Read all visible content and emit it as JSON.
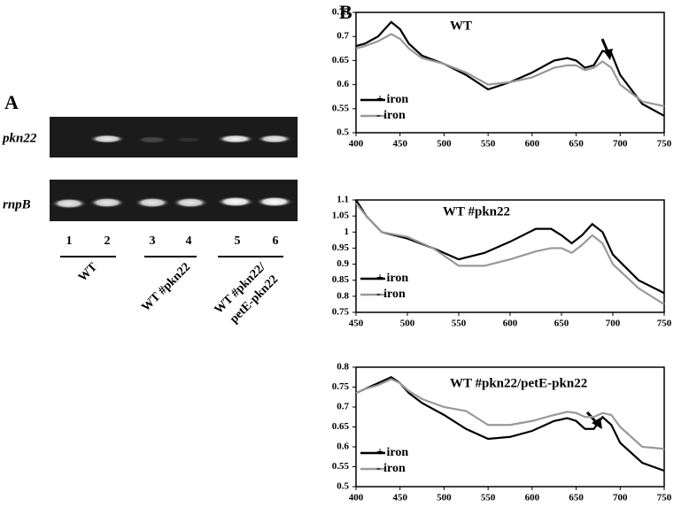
{
  "panel_a": {
    "label": "A",
    "rows": [
      "pkn22",
      "rnpB"
    ],
    "lanes": [
      "1",
      "2",
      "3",
      "4",
      "5",
      "6"
    ],
    "groups": [
      [
        "WT"
      ],
      [
        "WT #pkn22"
      ],
      [
        "WT #pkn22/",
        "petE-pkn22"
      ]
    ]
  },
  "panel_b": {
    "label": "B"
  },
  "chart_data": [
    {
      "type": "line",
      "title": "WT",
      "x": [
        400,
        410,
        425,
        440,
        450,
        460,
        475,
        500,
        525,
        550,
        575,
        600,
        625,
        640,
        650,
        660,
        670,
        680,
        690,
        700,
        725,
        750
      ],
      "xlim": [
        400,
        750
      ],
      "xticks": [
        400,
        450,
        500,
        550,
        600,
        650,
        700,
        750
      ],
      "ylim": [
        0.5,
        0.75
      ],
      "yticks": [
        0.5,
        0.55,
        0.6,
        0.65,
        0.7,
        0.75
      ],
      "series": [
        {
          "name": "+ iron",
          "color": "#000000",
          "values": [
            0.68,
            0.685,
            0.7,
            0.73,
            0.715,
            0.685,
            0.66,
            0.643,
            0.62,
            0.59,
            0.605,
            0.625,
            0.65,
            0.655,
            0.65,
            0.635,
            0.64,
            0.67,
            0.665,
            0.62,
            0.56,
            0.535
          ]
        },
        {
          "name": "- iron",
          "color": "#999999",
          "values": [
            0.675,
            0.68,
            0.69,
            0.705,
            0.695,
            0.675,
            0.655,
            0.643,
            0.625,
            0.6,
            0.605,
            0.615,
            0.635,
            0.64,
            0.64,
            0.63,
            0.635,
            0.648,
            0.635,
            0.6,
            0.565,
            0.555
          ]
        }
      ]
    },
    {
      "type": "line",
      "title": "WT #pkn22",
      "x": [
        450,
        460,
        475,
        500,
        525,
        550,
        575,
        600,
        625,
        640,
        650,
        660,
        670,
        680,
        690,
        700,
        725,
        750
      ],
      "xlim": [
        450,
        750
      ],
      "xticks": [
        450,
        500,
        550,
        600,
        650,
        700,
        750
      ],
      "ylim": [
        0.75,
        1.1
      ],
      "yticks": [
        0.75,
        0.8,
        0.85,
        0.9,
        0.95,
        1,
        1.05,
        1.1
      ],
      "series": [
        {
          "name": "+ iron",
          "color": "#000000",
          "values": [
            1.1,
            1.05,
            1.0,
            0.98,
            0.95,
            0.915,
            0.935,
            0.97,
            1.01,
            1.01,
            0.99,
            0.965,
            0.99,
            1.025,
            1.0,
            0.93,
            0.85,
            0.81
          ]
        },
        {
          "name": "- iron",
          "color": "#999999",
          "values": [
            1.09,
            1.05,
            1.0,
            0.985,
            0.95,
            0.895,
            0.895,
            0.915,
            0.94,
            0.95,
            0.95,
            0.935,
            0.96,
            0.99,
            0.965,
            0.9,
            0.825,
            0.775
          ]
        }
      ]
    },
    {
      "type": "line",
      "title": "WT #pkn22/petE-pkn22",
      "x": [
        400,
        410,
        425,
        440,
        450,
        460,
        475,
        500,
        525,
        550,
        575,
        600,
        625,
        640,
        650,
        660,
        670,
        680,
        690,
        700,
        725,
        750
      ],
      "xlim": [
        400,
        750
      ],
      "xticks": [
        400,
        450,
        500,
        550,
        600,
        650,
        700,
        750
      ],
      "ylim": [
        0.5,
        0.8
      ],
      "yticks": [
        0.5,
        0.55,
        0.6,
        0.65,
        0.7,
        0.75,
        0.8
      ],
      "series": [
        {
          "name": "+ iron",
          "color": "#000000",
          "values": [
            0.735,
            0.745,
            0.76,
            0.775,
            0.76,
            0.735,
            0.71,
            0.68,
            0.645,
            0.62,
            0.625,
            0.64,
            0.665,
            0.672,
            0.665,
            0.645,
            0.645,
            0.675,
            0.655,
            0.61,
            0.56,
            0.54
          ]
        },
        {
          "name": "- iron",
          "color": "#999999",
          "values": [
            0.735,
            0.745,
            0.755,
            0.77,
            0.76,
            0.74,
            0.72,
            0.7,
            0.69,
            0.655,
            0.655,
            0.665,
            0.68,
            0.688,
            0.685,
            0.675,
            0.675,
            0.685,
            0.68,
            0.65,
            0.6,
            0.595
          ]
        }
      ]
    }
  ]
}
